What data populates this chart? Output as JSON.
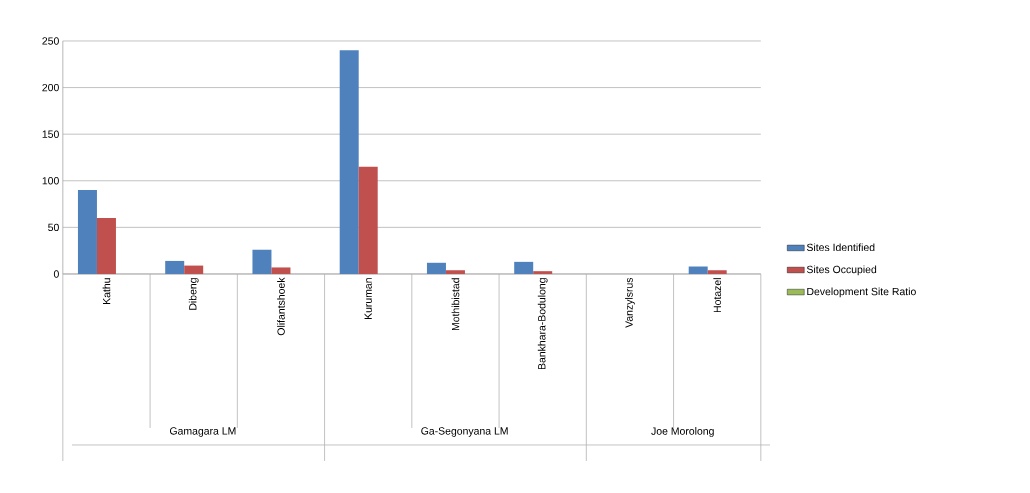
{
  "chart_data": {
    "type": "bar",
    "categories": [
      "Kathu",
      "Dibeng",
      "Olifantshoek",
      "Kuruman",
      "Mothibistad",
      "Bankhara-Bodulong",
      "Vanzylsrus",
      "Hotazel"
    ],
    "series": [
      {
        "name": "Sites Identified",
        "color": "#4f81bd",
        "values": [
          90,
          14,
          26,
          240,
          12,
          13,
          0,
          8
        ]
      },
      {
        "name": "Sites Occupied",
        "color": "#c0504d",
        "values": [
          60,
          9,
          7,
          115,
          4,
          3,
          0,
          4
        ]
      },
      {
        "name": "Development Site Ratio",
        "color": "#9bbb59",
        "values": [
          null,
          null,
          null,
          null,
          null,
          null,
          null,
          null
        ]
      }
    ],
    "annotations": [
      "Gamagara LM",
      "Ga-Segonyana LM",
      "Joe Morolong"
    ],
    "ylim": [
      0,
      250
    ],
    "yticks": [
      0,
      50,
      100,
      150,
      200,
      250
    ],
    "grid": "y",
    "legend": "right"
  }
}
